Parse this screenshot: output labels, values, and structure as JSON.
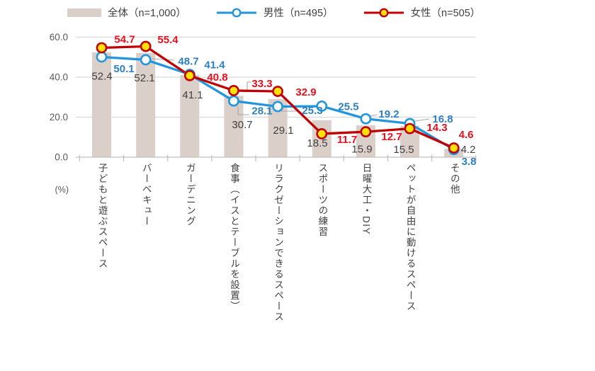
{
  "chart_data": {
    "type": "combo-bar-line",
    "title": "",
    "categories": [
      "子どもと遊ぶスペース",
      "バーベキュー",
      "ガーデニング",
      "食事（イスとテーブルを設置）",
      "リラクゼーションできるスペース",
      "スポーツの練習",
      "日曜大工・DIY",
      "ペットが自由に動けるスペース",
      "その他"
    ],
    "series": [
      {
        "name": "全体（n=1,000）",
        "type": "bar",
        "color": "#DBCFCA",
        "label_color": "#404040",
        "values": [
          52.4,
          52.1,
          41.1,
          30.7,
          29.1,
          18.5,
          15.9,
          15.5,
          4.2
        ]
      },
      {
        "name": "男性（n=495）",
        "type": "line",
        "color": "#2196DC",
        "marker_fill": "#FFFFFF",
        "label_color": "#2E7FC2",
        "values": [
          50.1,
          48.7,
          41.4,
          28.1,
          25.3,
          25.5,
          19.2,
          16.8,
          3.8
        ]
      },
      {
        "name": "女性（n=505）",
        "type": "line",
        "color": "#C00000",
        "marker_fill": "#FFE105",
        "label_color": "#E8101E",
        "values": [
          54.7,
          55.4,
          40.8,
          33.3,
          32.9,
          11.7,
          12.7,
          14.3,
          4.6
        ]
      }
    ],
    "xlabel": "",
    "ylabel": "",
    "unit_label": "(%)",
    "ylim": [
      0,
      60
    ],
    "y_ticks": [
      0,
      20,
      40,
      60
    ],
    "y_tick_labels": [
      "0.0",
      "20.0",
      "40.0",
      "60.0"
    ],
    "grid": true,
    "legend_position": "top",
    "data_labels": true
  }
}
